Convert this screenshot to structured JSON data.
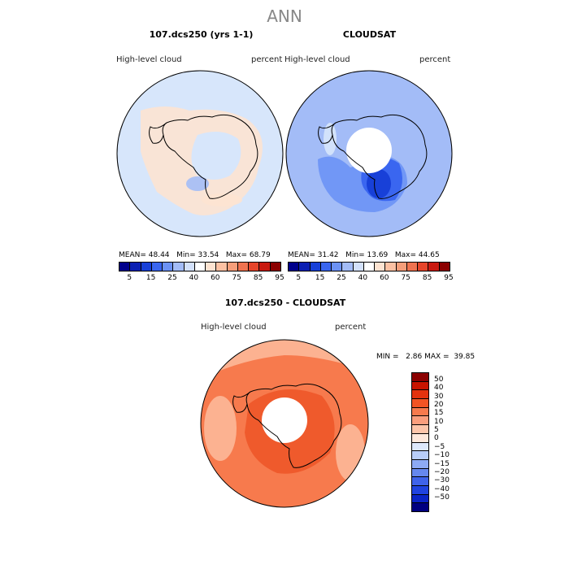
{
  "figure_title": "ANN",
  "panels": {
    "model": {
      "title": "107.dcs250 (yrs 1-1)",
      "variable": "High-level cloud",
      "units": "percent",
      "mean_label": "MEAN=",
      "mean": "48.44",
      "min_label": "Min=",
      "min": "33.54",
      "max_label": "Max=",
      "max": "68.79"
    },
    "obs": {
      "title": "CLOUDSAT",
      "variable": "High-level cloud",
      "units": "percent",
      "mean_label": "MEAN=",
      "mean": "31.42",
      "min_label": "Min=",
      "min": "13.69",
      "max_label": "Max=",
      "max": "44.65"
    },
    "diff": {
      "title": "107.dcs250 - CLOUDSAT",
      "variable": "High-level cloud",
      "units": "percent",
      "min_label": "MIN =",
      "min": "2.86",
      "max_label": "MAX =",
      "max": "39.85"
    }
  },
  "colorbar_abs": {
    "colors": [
      "#00008b",
      "#0b1fb3",
      "#1840d8",
      "#3a66f0",
      "#6c92f5",
      "#a3bcf7",
      "#d3e1fb",
      "#ffffff",
      "#fde3d1",
      "#fcc1a3",
      "#f59e7a",
      "#ef7350",
      "#e6452a",
      "#c91a10",
      "#8b0000"
    ],
    "labels": [
      "5",
      "15",
      "25",
      "40",
      "60",
      "75",
      "85",
      "95"
    ]
  },
  "colorbar_diff": {
    "colors": [
      "#8b0000",
      "#c81400",
      "#e3320e",
      "#f25424",
      "#f77a4d",
      "#fa9e7d",
      "#fcc5aa",
      "#fde8dc",
      "#dde8fb",
      "#b8cdf8",
      "#8daaf3",
      "#6688ef",
      "#3f63ea",
      "#2043df",
      "#0a24c6",
      "#000080"
    ],
    "labels": [
      "50",
      "40",
      "30",
      "20",
      "15",
      "10",
      "5",
      "0",
      "−5",
      "−10",
      "−15",
      "−20",
      "−30",
      "−40",
      "−50"
    ]
  },
  "map_colors": {
    "model_base": "#d7e6fb",
    "model_warm": "#fde3d1",
    "model_cool": "#a3bcf7",
    "obs_base": "#a3bcf7",
    "obs_mid": "#6c92f5",
    "obs_dark": "#3a66f0",
    "obs_deep": "#1840d8",
    "diff_base": "#f77a4d",
    "diff_light": "#fcc1a3",
    "diff_dark": "#ef5a2c",
    "hole": "#ffffff"
  }
}
